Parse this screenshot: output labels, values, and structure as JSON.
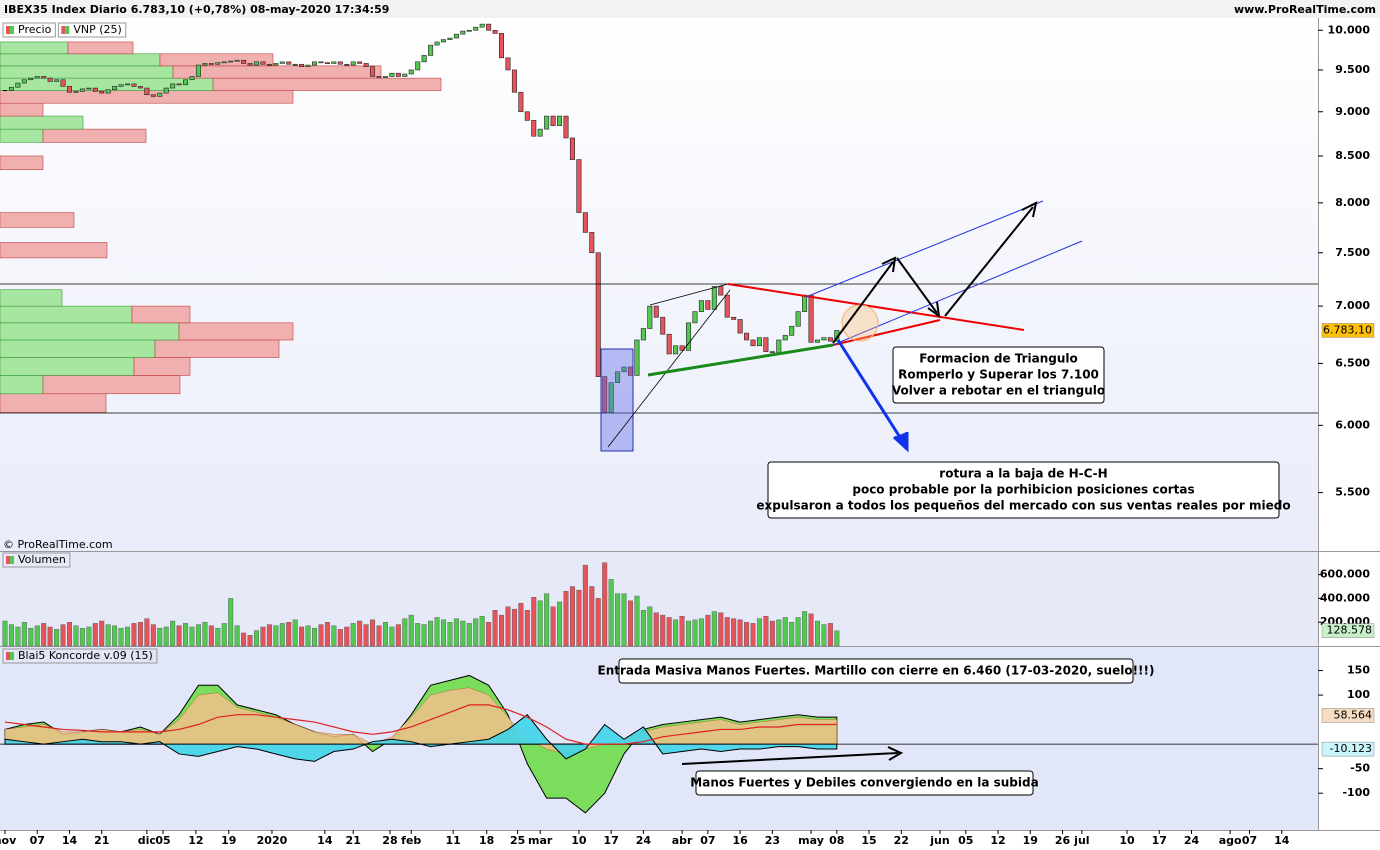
{
  "header": {
    "title": "IBEX35 Index Diario 6.783,10 (+0,78%) 08-may-2020 17:34:59",
    "site": "www.ProRealTime.com"
  },
  "chart_data": [
    {
      "type": "candlestick",
      "legend": [
        "Precio",
        "VNP (25)"
      ],
      "credit": "© ProRealTime.com",
      "log_scale": true,
      "up_color": "#52c852",
      "down_color": "#e5535b",
      "xlim": [
        0,
        203
      ],
      "xticks": [
        {
          "value": 0,
          "label": "nov"
        },
        {
          "value": 5,
          "label": "07"
        },
        {
          "value": 10,
          "label": "14"
        },
        {
          "value": 15,
          "label": "21"
        },
        {
          "value": 22,
          "label": "dic"
        },
        {
          "value": 24.5,
          "label": "05"
        },
        {
          "value": 29.6,
          "label": "12"
        },
        {
          "value": 34.7,
          "label": "19"
        },
        {
          "value": 41.4,
          "label": "2020"
        },
        {
          "value": 49.6,
          "label": "14"
        },
        {
          "value": 54,
          "label": "21"
        },
        {
          "value": 59.7,
          "label": "28"
        },
        {
          "value": 63,
          "label": "feb"
        },
        {
          "value": 69.5,
          "label": "11"
        },
        {
          "value": 74.7,
          "label": "18"
        },
        {
          "value": 79.5,
          "label": "25"
        },
        {
          "value": 83,
          "label": "mar"
        },
        {
          "value": 89,
          "label": "10"
        },
        {
          "value": 94,
          "label": "17"
        },
        {
          "value": 99,
          "label": "24"
        },
        {
          "value": 105,
          "label": "abr"
        },
        {
          "value": 109,
          "label": "07"
        },
        {
          "value": 114,
          "label": "16"
        },
        {
          "value": 119,
          "label": "23"
        },
        {
          "value": 125,
          "label": "may"
        },
        {
          "value": 129,
          "label": "08"
        },
        {
          "value": 134,
          "label": "15"
        },
        {
          "value": 139,
          "label": "22"
        },
        {
          "value": 145,
          "label": "jun"
        },
        {
          "value": 149,
          "label": "05"
        },
        {
          "value": 154,
          "label": "12"
        },
        {
          "value": 159,
          "label": "19"
        },
        {
          "value": 164,
          "label": "26"
        },
        {
          "value": 167,
          "label": "jul"
        },
        {
          "value": 174,
          "label": "10"
        },
        {
          "value": 179,
          "label": "17"
        },
        {
          "value": 184,
          "label": "24"
        },
        {
          "value": 190,
          "label": "ago"
        },
        {
          "value": 193,
          "label": "07"
        },
        {
          "value": 198,
          "label": "14"
        }
      ],
      "ylim": [
        5100,
        10160
      ],
      "yticks": [
        {
          "value": 10000,
          "label": "10.000"
        },
        {
          "value": 9500,
          "label": "9.500"
        },
        {
          "value": 9000,
          "label": "9.000"
        },
        {
          "value": 8500,
          "label": "8.500"
        },
        {
          "value": 8000,
          "label": "8.000"
        },
        {
          "value": 7500,
          "label": "7.500"
        },
        {
          "value": 7000,
          "label": "7.000"
        },
        {
          "value": 6500,
          "label": "6.500"
        },
        {
          "value": 6000,
          "label": "6.000"
        },
        {
          "value": 5500,
          "label": "5.500"
        }
      ],
      "close": [
        9250,
        9290,
        9340,
        9380,
        9400,
        9420,
        9400,
        9360,
        9380,
        9300,
        9230,
        9240,
        9270,
        9280,
        9240,
        9220,
        9260,
        9300,
        9320,
        9330,
        9300,
        9280,
        9200,
        9180,
        9220,
        9280,
        9330,
        9320,
        9380,
        9420,
        9560,
        9580,
        9570,
        9590,
        9600,
        9610,
        9620,
        9580,
        9560,
        9600,
        9570,
        9560,
        9580,
        9600,
        9570,
        9570,
        9540,
        9560,
        9600,
        9590,
        9580,
        9600,
        9570,
        9560,
        9600,
        9580,
        9540,
        9420,
        9410,
        9420,
        9460,
        9420,
        9450,
        9500,
        9600,
        9680,
        9810,
        9850,
        9880,
        9900,
        9950,
        9990,
        10000,
        10040,
        10080,
        10000,
        9960,
        9650,
        9500,
        9230,
        9000,
        8900,
        8720,
        8800,
        8950,
        8840,
        8950,
        8700,
        8460,
        7900,
        7700,
        7500,
        6390,
        6100,
        6340,
        6430,
        6470,
        6400,
        6700,
        6800,
        7000,
        6900,
        6750,
        6580,
        6650,
        6610,
        6850,
        6950,
        7050,
        6970,
        7180,
        7100,
        6900,
        6880,
        6760,
        6700,
        6650,
        6720,
        6600,
        6590,
        6700,
        6740,
        6820,
        6950,
        7100,
        6680,
        6700,
        6720,
        6690,
        6783
      ],
      "last_label": {
        "value": 6783.1,
        "label": "6.783,10"
      },
      "vnp": {
        "bins": [
          6100,
          6250,
          6400,
          6550,
          6700,
          6850,
          7000,
          7150,
          7300,
          7450,
          7600,
          7750,
          7900,
          8050,
          8200,
          8350,
          8500,
          8650,
          8800,
          8950,
          9100,
          9250,
          9400,
          9550,
          9700,
          9850,
          10000
        ],
        "buy": [
          0,
          43,
          134,
          155,
          179,
          132,
          62,
          0,
          0,
          0,
          0,
          0,
          0,
          0,
          0,
          0,
          0,
          43,
          83,
          0,
          0,
          213,
          173,
          160,
          68,
          0
        ],
        "sell": [
          106,
          137,
          56,
          124,
          114,
          58,
          0,
          0,
          0,
          107,
          0,
          74,
          0,
          0,
          0,
          43,
          0,
          103,
          0,
          43,
          293,
          228,
          208,
          113,
          65,
          0
        ]
      }
    },
    {
      "type": "bar",
      "legend": [
        "Volumen"
      ],
      "ylim": [
        0,
        790000
      ],
      "yticks": [
        {
          "value": 600000,
          "label": "600.000"
        },
        {
          "value": 400000,
          "label": "400.000"
        },
        {
          "value": 200000,
          "label": "200.000"
        }
      ],
      "values": [
        210000,
        180000,
        160000,
        200000,
        150000,
        170000,
        190000,
        160000,
        140000,
        180000,
        200000,
        170000,
        150000,
        160000,
        190000,
        210000,
        180000,
        170000,
        150000,
        160000,
        190000,
        200000,
        230000,
        180000,
        150000,
        160000,
        210000,
        170000,
        190000,
        160000,
        180000,
        200000,
        170000,
        150000,
        190000,
        400000,
        170000,
        110000,
        90000,
        130000,
        160000,
        180000,
        170000,
        190000,
        200000,
        220000,
        160000,
        170000,
        150000,
        180000,
        200000,
        170000,
        140000,
        160000,
        190000,
        210000,
        180000,
        220000,
        170000,
        200000,
        160000,
        180000,
        230000,
        260000,
        190000,
        180000,
        210000,
        240000,
        220000,
        200000,
        230000,
        210000,
        190000,
        230000,
        250000,
        200000,
        300000,
        260000,
        330000,
        310000,
        360000,
        300000,
        410000,
        380000,
        440000,
        330000,
        370000,
        460000,
        500000,
        470000,
        680000,
        500000,
        400000,
        700000,
        560000,
        440000,
        440000,
        380000,
        420000,
        300000,
        330000,
        280000,
        260000,
        240000,
        220000,
        250000,
        210000,
        220000,
        230000,
        260000,
        290000,
        280000,
        240000,
        230000,
        220000,
        200000,
        190000,
        230000,
        250000,
        210000,
        220000,
        240000,
        200000,
        240000,
        290000,
        270000,
        210000,
        180000,
        190000,
        128578
      ],
      "last_label": {
        "value": 128578,
        "label": "128.578"
      }
    },
    {
      "type": "koncorde",
      "legend": [
        "Blai5 Koncorde v.09 (15)"
      ],
      "ylim": [
        -175,
        198
      ],
      "yticks": [
        150,
        100,
        -50,
        -100
      ],
      "x": [
        0,
        3,
        6,
        9,
        12,
        15,
        18,
        21,
        24,
        27,
        30,
        33,
        36,
        39,
        42,
        45,
        48,
        51,
        54,
        57,
        60,
        63,
        66,
        69,
        72,
        75,
        78,
        81,
        84,
        87,
        90,
        93,
        96,
        99,
        102,
        105,
        108,
        111,
        114,
        117,
        120,
        123,
        126,
        129
      ],
      "series": [
        {
          "color": "#6fdc4a",
          "values": [
            30,
            40,
            45,
            20,
            25,
            30,
            25,
            35,
            20,
            60,
            120,
            120,
            80,
            70,
            60,
            40,
            25,
            15,
            20,
            -15,
            10,
            60,
            120,
            130,
            140,
            120,
            60,
            -40,
            -110,
            -110,
            -140,
            -100,
            -20,
            30,
            40,
            45,
            50,
            55,
            45,
            50,
            55,
            60,
            55,
            55
          ]
        },
        {
          "color": "#f2c08a",
          "values": [
            30,
            35,
            40,
            25,
            25,
            30,
            25,
            30,
            20,
            50,
            100,
            105,
            75,
            65,
            55,
            40,
            25,
            20,
            20,
            0,
            15,
            55,
            100,
            110,
            115,
            100,
            55,
            10,
            -10,
            -20,
            -10,
            0,
            10,
            25,
            35,
            40,
            45,
            50,
            40,
            45,
            50,
            55,
            50,
            50
          ]
        },
        {
          "color": "#3fd4e8",
          "values": [
            10,
            5,
            0,
            5,
            10,
            5,
            5,
            0,
            5,
            -20,
            -25,
            -15,
            -5,
            -10,
            -20,
            -30,
            -35,
            -15,
            -10,
            5,
            10,
            5,
            -5,
            0,
            5,
            10,
            30,
            60,
            10,
            -30,
            -10,
            40,
            10,
            35,
            -20,
            -15,
            -10,
            -15,
            -10,
            -10,
            -5,
            -5,
            -10,
            -10
          ]
        },
        {
          "color": "#e02020",
          "values": [
            45,
            40,
            35,
            30,
            28,
            25,
            25,
            25,
            25,
            30,
            40,
            55,
            60,
            60,
            55,
            50,
            45,
            35,
            25,
            20,
            25,
            35,
            50,
            65,
            80,
            80,
            70,
            55,
            35,
            10,
            0,
            0,
            0,
            5,
            15,
            20,
            25,
            30,
            30,
            35,
            35,
            40,
            40,
            40
          ]
        }
      ],
      "last_labels": [
        {
          "value": 58.564,
          "label": "58.564"
        },
        {
          "value": -10.123,
          "label": "-10.123"
        }
      ]
    }
  ],
  "annotations": [
    {
      "lines": [
        "Formacion de Triangulo",
        "Romperlo y Superar los 7.100",
        "Volver a rebotar en el triangulo"
      ]
    },
    {
      "lines": [
        "rotura a la baja de H-C-H",
        "poco probable por la porhibicion posiciones cortas",
        "expulsaron a todos los pequeños del mercado con sus ventas reales por miedo"
      ]
    },
    {
      "lines": [
        "Entrada Masiva Manos Fuertes. Martillo con cierre en 6.460 (17-03-2020, suelo!!!)"
      ]
    },
    {
      "lines": [
        "Manos Fuertes y Debiles convergiendo en la subida"
      ]
    }
  ]
}
